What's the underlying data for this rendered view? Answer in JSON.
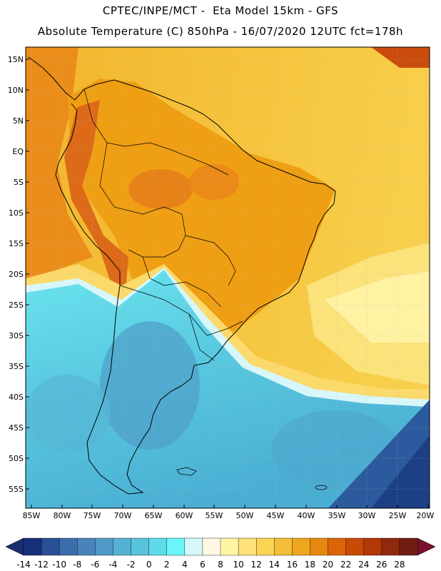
{
  "header": {
    "line1": "CPTEC/INPE/MCT -  Eta Model 15km - GFS",
    "line2": "Absolute Temperature (C) 850hPa - 16/07/2020 12UTC fct=178h"
  },
  "axes": {
    "lat_labels": [
      "15N",
      "10N",
      "5N",
      "EQ",
      "5S",
      "10S",
      "15S",
      "20S",
      "25S",
      "30S",
      "35S",
      "40S",
      "45S",
      "50S",
      "55S"
    ],
    "lon_labels": [
      "85W",
      "80W",
      "75W",
      "70W",
      "65W",
      "60W",
      "55W",
      "50W",
      "45W",
      "40W",
      "35W",
      "30W",
      "25W",
      "20W"
    ]
  },
  "colorbar": {
    "labels": [
      "-14",
      "-12",
      "-10",
      "-8",
      "-6",
      "-4",
      "-2",
      "0",
      "2",
      "4",
      "6",
      "8",
      "10",
      "12",
      "14",
      "16",
      "18",
      "20",
      "22",
      "24",
      "26",
      "28"
    ],
    "colors": [
      "#17307a",
      "#2a4f98",
      "#3c6ead",
      "#4884bb",
      "#4f9ac7",
      "#55b1d3",
      "#57c3de",
      "#5ddbe9",
      "#6af5f8",
      "#d6f8fb",
      "#fff8e4",
      "#fff5a6",
      "#ffe27a",
      "#fbd355",
      "#f3bd37",
      "#eea61e",
      "#e68712",
      "#dc6408",
      "#c84a07",
      "#b23805",
      "#8f2a0c",
      "#6e1d10"
    ],
    "under_color": "#1a2d6e",
    "over_color": "#7a0f2e"
  },
  "colors": {
    "ocean_warm": "#f5c139",
    "ocean_pale": "#fbe07c",
    "land_main": "#ef9f13",
    "land_hot": "#e37d18",
    "cold_air": "#5fd2e3",
    "cold_deep": "#4aaed3",
    "frame": "#000000"
  }
}
